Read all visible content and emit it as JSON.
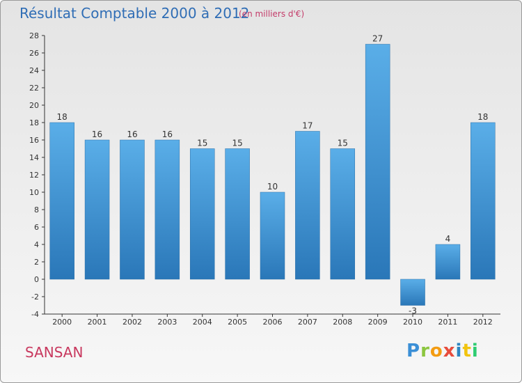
{
  "title": "Résultat Comptable 2000 à 2012",
  "subtitle": "(en milliers d'€)",
  "town": "SANSAN",
  "logo": {
    "letters": [
      "P",
      "r",
      "o",
      "x",
      "i",
      "t",
      "i"
    ],
    "colors": [
      "#3b8fd6",
      "#8cc63f",
      "#f39c12",
      "#e74c3c",
      "#2e86c1",
      "#f1c40f",
      "#2ecc71"
    ]
  },
  "colors": {
    "bar_top": "#5aaee8",
    "bar_bottom": "#2a77b8",
    "axis": "#333333",
    "grid": "#cccccc"
  },
  "chart_data": {
    "type": "bar",
    "title": "Résultat Comptable 2000 à 2012",
    "subtitle": "(en milliers d'€)",
    "xlabel": "",
    "ylabel": "",
    "categories": [
      "2000",
      "2001",
      "2002",
      "2003",
      "2004",
      "2005",
      "2006",
      "2007",
      "2008",
      "2009",
      "2010",
      "2011",
      "2012"
    ],
    "values": [
      18,
      16,
      16,
      16,
      15,
      15,
      10,
      17,
      15,
      27,
      -3,
      4,
      18
    ],
    "ylim": [
      -4,
      28
    ],
    "yticks": [
      -4,
      -2,
      0,
      2,
      4,
      6,
      8,
      10,
      12,
      14,
      16,
      18,
      20,
      22,
      24,
      26,
      28
    ],
    "grid": false
  }
}
